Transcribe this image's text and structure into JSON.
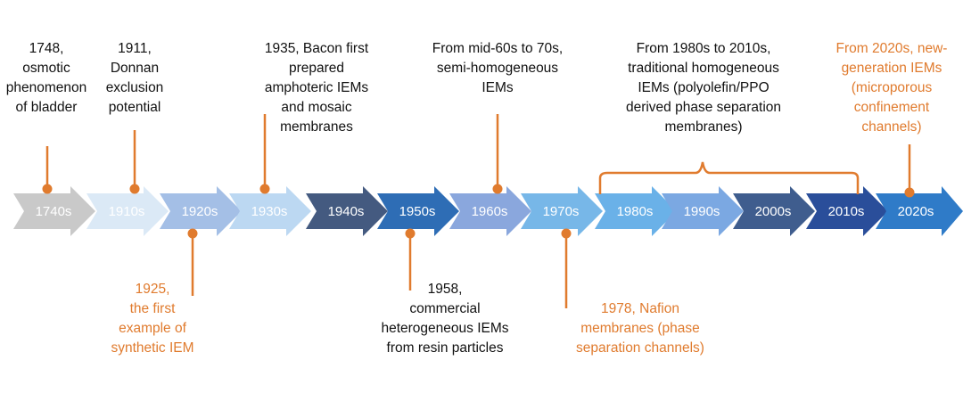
{
  "colors": {
    "orange": "#e07b2e",
    "text_dark": "#111111",
    "label_light": "#ffffff"
  },
  "timeline": {
    "decades": [
      {
        "label": "1740s",
        "color": "#c9c9c9"
      },
      {
        "label": "1910s",
        "color": "#dbe9f6"
      },
      {
        "label": "1920s",
        "color": "#a4bfe6"
      },
      {
        "label": "1930s",
        "color": "#bcd8f2"
      },
      {
        "label": "1940s",
        "color": "#445a80"
      },
      {
        "label": "1950s",
        "color": "#2e6db5"
      },
      {
        "label": "1960s",
        "color": "#8aa7dd"
      },
      {
        "label": "1970s",
        "color": "#77b7e8"
      },
      {
        "label": "1980s",
        "color": "#6ab1e8"
      },
      {
        "label": "1990s",
        "color": "#7ba8e2"
      },
      {
        "label": "2000s",
        "color": "#3f5d8e"
      },
      {
        "label": "2010s",
        "color": "#2a4e9a"
      },
      {
        "label": "2020s",
        "color": "#2f7bc8"
      }
    ]
  },
  "events": [
    {
      "id": "1748",
      "text": "1748,\nosmotic\nphenomenon\nof bladder",
      "style": "dark"
    },
    {
      "id": "1911",
      "text": "1911,\nDonnan\nexclusion\npotential",
      "style": "dark"
    },
    {
      "id": "1925",
      "text": "1925,\nthe first\nexample of\nsynthetic IEM",
      "style": "orange"
    },
    {
      "id": "1935",
      "text": "1935, Bacon first\nprepared\namphoteric IEMs\nand mosaic\nmembranes",
      "style": "dark"
    },
    {
      "id": "1958",
      "text": "1958,\ncommercial\nheterogeneous IEMs\nfrom resin particles",
      "style": "dark"
    },
    {
      "id": "1960s",
      "text": "From mid-60s to 70s,\nsemi-homogeneous\nIEMs",
      "style": "dark"
    },
    {
      "id": "1978",
      "text": "1978, Nafion\nmembranes (phase\nseparation channels)",
      "style": "orange"
    },
    {
      "id": "1980s-2010s",
      "text": "From 1980s to 2010s,\ntraditional homogeneous\nIEMs (polyolefin/PPO\nderived phase separation\nmembranes)",
      "style": "dark"
    },
    {
      "id": "2020s",
      "text": "From 2020s, new-\ngeneration IEMs\n(microporous\nconfinement\nchannels)",
      "style": "orange"
    }
  ]
}
